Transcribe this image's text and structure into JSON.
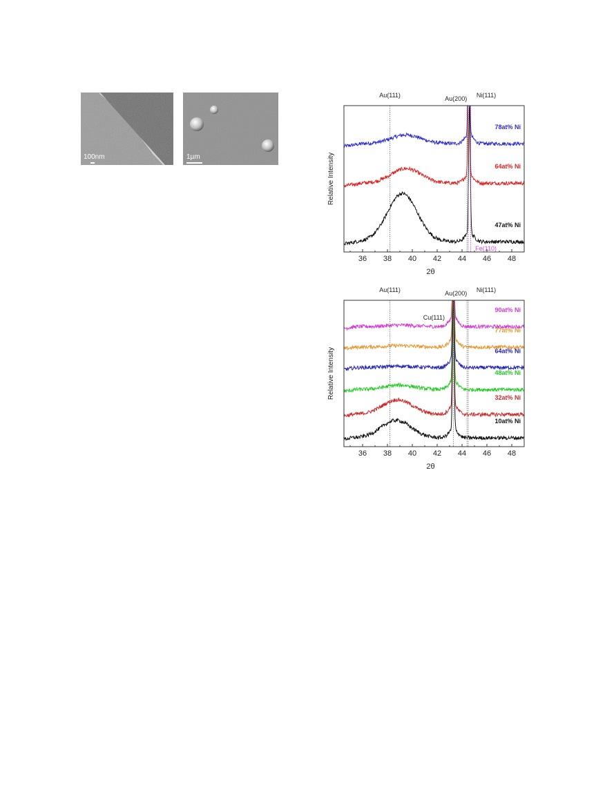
{
  "sem_images": [
    {
      "scale_label": "100nm"
    },
    {
      "scale_label": "1µm"
    }
  ],
  "chart_data": [
    {
      "type": "line",
      "xlabel": "2θ",
      "ylabel": "Relative Intensity",
      "xlim": [
        34.5,
        49
      ],
      "x_ticks": [
        36,
        38,
        40,
        42,
        44,
        46,
        48
      ],
      "reference_lines": [
        {
          "label": "Au(111)",
          "x": 38.2
        },
        {
          "label": "Au(200)",
          "x": 44.4
        },
        {
          "label": "Ni(111)",
          "x": 44.5
        },
        {
          "label": "Fe(110)",
          "x": 44.7,
          "color": "#dd44dd"
        }
      ],
      "series": [
        {
          "name": "78at% Ni",
          "color": "#2b2bd6",
          "offset": 0.72,
          "broad_peak_x": 39.5,
          "broad_peak_height": 0.06,
          "sharp_peak_x": 44.55
        },
        {
          "name": "64at% Ni",
          "color": "#e02020",
          "offset": 0.45,
          "broad_peak_x": 39.5,
          "broad_peak_height": 0.1,
          "sharp_peak_x": 44.55
        },
        {
          "name": "47at% Ni",
          "color": "#111111",
          "offset": 0.05,
          "broad_peak_x": 39.2,
          "broad_peak_height": 0.33,
          "sharp_peak_x": 44.6
        }
      ]
    },
    {
      "type": "line",
      "xlabel": "2θ",
      "ylabel": "Relative Intensity",
      "xlim": [
        34.5,
        49
      ],
      "x_ticks": [
        36,
        38,
        40,
        42,
        44,
        46,
        48
      ],
      "reference_lines": [
        {
          "label": "Au(111)",
          "x": 38.2
        },
        {
          "label": "Au(200)",
          "x": 44.4
        },
        {
          "label": "Ni(111)",
          "x": 44.5
        },
        {
          "label": "Cu(111)",
          "x": 43.3
        }
      ],
      "series": [
        {
          "name": "90at% Ni",
          "color": "#d63ad6",
          "offset": 0.8,
          "broad_peak_x": 39,
          "broad_peak_height": 0.01,
          "sharp_peak_x": 43.3
        },
        {
          "name": "77at% Ni",
          "color": "#e8972e",
          "offset": 0.66,
          "broad_peak_x": 39,
          "broad_peak_height": 0.01,
          "sharp_peak_x": 43.3
        },
        {
          "name": "64at% Ni",
          "color": "#2424b8",
          "offset": 0.52,
          "broad_peak_x": 39,
          "broad_peak_height": 0.01,
          "sharp_peak_x": 43.3
        },
        {
          "name": "48at% Ni",
          "color": "#22cc22",
          "offset": 0.37,
          "broad_peak_x": 39,
          "broad_peak_height": 0.03,
          "sharp_peak_x": 43.3
        },
        {
          "name": "32at% Ni",
          "color": "#cc2a2a",
          "offset": 0.2,
          "broad_peak_x": 38.8,
          "broad_peak_height": 0.1,
          "sharp_peak_x": 43.3
        },
        {
          "name": "10at% Ni",
          "color": "#111111",
          "offset": 0.04,
          "broad_peak_x": 38.7,
          "broad_peak_height": 0.12,
          "sharp_peak_x": 43.3
        }
      ]
    }
  ]
}
